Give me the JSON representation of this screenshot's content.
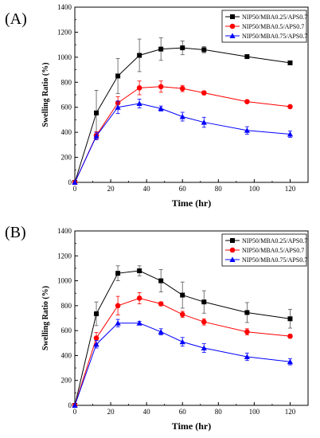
{
  "chart_data": [
    {
      "type": "line",
      "panel_label": "(A)",
      "xlabel": "Time (hr)",
      "ylabel": "Swelling Ratio (%)",
      "xlim": [
        0,
        130
      ],
      "ylim": [
        0,
        1400
      ],
      "xticks": [
        "0",
        "20",
        "40",
        "60",
        "80",
        "100",
        "120"
      ],
      "yticks": [
        "0",
        "200",
        "400",
        "600",
        "800",
        "1000",
        "1200",
        "1400"
      ],
      "legend_position": "top-right",
      "x": [
        0,
        12,
        24,
        36,
        48,
        60,
        72,
        96,
        120
      ],
      "series": [
        {
          "name": "NIP50/MBA0.25/APS0.7",
          "color": "#000000",
          "marker": "square",
          "values": [
            0,
            555,
            850,
            1015,
            1065,
            1075,
            1060,
            1005,
            955
          ],
          "errors": [
            0,
            180,
            140,
            130,
            90,
            55,
            25,
            10,
            10
          ]
        },
        {
          "name": "NIP50/MBA0.5/APS0.7",
          "color": "#ff0000",
          "marker": "circle",
          "values": [
            0,
            375,
            635,
            755,
            765,
            750,
            715,
            645,
            605
          ],
          "errors": [
            0,
            30,
            50,
            55,
            45,
            25,
            15,
            10,
            10
          ]
        },
        {
          "name": "NIP50/MBA0.75/APS0.7",
          "color": "#0000ff",
          "marker": "triangle",
          "values": [
            0,
            370,
            600,
            630,
            590,
            525,
            480,
            415,
            385
          ],
          "errors": [
            0,
            30,
            50,
            35,
            20,
            35,
            40,
            30,
            25
          ]
        }
      ]
    },
    {
      "type": "line",
      "panel_label": "(B)",
      "xlabel": "Time (hr)",
      "ylabel": "Swelling Ratio (%)",
      "xlim": [
        0,
        130
      ],
      "ylim": [
        0,
        1400
      ],
      "xticks": [
        "0",
        "20",
        "40",
        "60",
        "80",
        "100",
        "120"
      ],
      "yticks": [
        "0",
        "200",
        "400",
        "600",
        "800",
        "1000",
        "1200",
        "1400"
      ],
      "legend_position": "top-right",
      "x": [
        0,
        12,
        24,
        36,
        48,
        60,
        72,
        96,
        120
      ],
      "series": [
        {
          "name": "NIP50/MBA0.25/APS0.7",
          "color": "#000000",
          "marker": "square",
          "values": [
            0,
            735,
            1060,
            1080,
            1000,
            885,
            830,
            745,
            695
          ],
          "errors": [
            0,
            95,
            60,
            40,
            90,
            105,
            90,
            80,
            75
          ]
        },
        {
          "name": "NIP50/MBA0.5/APS0.7",
          "color": "#ff0000",
          "marker": "circle",
          "values": [
            0,
            540,
            800,
            860,
            815,
            730,
            670,
            590,
            555
          ],
          "errors": [
            0,
            45,
            75,
            45,
            15,
            25,
            25,
            25,
            15
          ]
        },
        {
          "name": "NIP50/MBA0.75/APS0.7",
          "color": "#0000ff",
          "marker": "triangle",
          "values": [
            0,
            490,
            660,
            660,
            590,
            510,
            460,
            390,
            350
          ],
          "errors": [
            0,
            30,
            30,
            15,
            25,
            35,
            35,
            30,
            25
          ]
        }
      ]
    }
  ]
}
